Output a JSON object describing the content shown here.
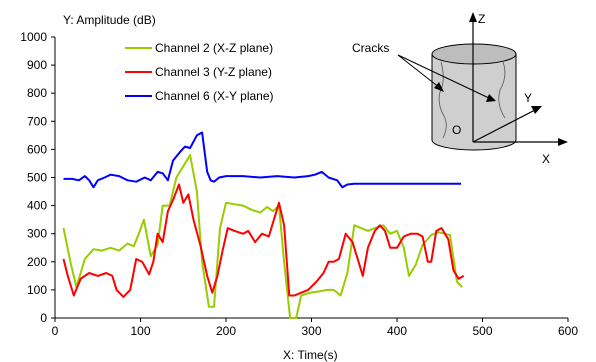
{
  "chart_data": {
    "type": "line",
    "title": "",
    "xlabel": "X: Time(s)",
    "ylabel": "Y: Amplitude (dB)",
    "xlim": [
      0,
      600
    ],
    "ylim": [
      0,
      1000
    ],
    "xticks": [
      0,
      100,
      200,
      300,
      400,
      500,
      600
    ],
    "yticks": [
      0,
      100,
      200,
      300,
      400,
      500,
      600,
      700,
      800,
      900,
      1000
    ],
    "grid": false,
    "legend_position": "top-left",
    "series": [
      {
        "name": "Channel 2 (X-Z plane)",
        "color": "#99cc00",
        "points": [
          [
            10,
            320
          ],
          [
            18,
            200
          ],
          [
            25,
            110
          ],
          [
            35,
            210
          ],
          [
            45,
            245
          ],
          [
            55,
            240
          ],
          [
            65,
            250
          ],
          [
            75,
            240
          ],
          [
            85,
            265
          ],
          [
            92,
            255
          ],
          [
            98,
            300
          ],
          [
            104,
            350
          ],
          [
            112,
            220
          ],
          [
            120,
            260
          ],
          [
            126,
            400
          ],
          [
            134,
            400
          ],
          [
            142,
            500
          ],
          [
            150,
            540
          ],
          [
            158,
            580
          ],
          [
            166,
            450
          ],
          [
            172,
            200
          ],
          [
            180,
            40
          ],
          [
            186,
            40
          ],
          [
            193,
            320
          ],
          [
            200,
            410
          ],
          [
            210,
            405
          ],
          [
            220,
            400
          ],
          [
            230,
            385
          ],
          [
            240,
            375
          ],
          [
            248,
            395
          ],
          [
            255,
            380
          ],
          [
            262,
            400
          ],
          [
            268,
            200
          ],
          [
            275,
            0
          ],
          [
            282,
            0
          ],
          [
            288,
            80
          ],
          [
            298,
            90
          ],
          [
            310,
            95
          ],
          [
            318,
            100
          ],
          [
            326,
            100
          ],
          [
            334,
            80
          ],
          [
            342,
            160
          ],
          [
            350,
            330
          ],
          [
            358,
            320
          ],
          [
            366,
            310
          ],
          [
            374,
            320
          ],
          [
            384,
            330
          ],
          [
            392,
            300
          ],
          [
            400,
            310
          ],
          [
            408,
            250
          ],
          [
            414,
            150
          ],
          [
            422,
            190
          ],
          [
            430,
            260
          ],
          [
            440,
            295
          ],
          [
            448,
            305
          ],
          [
            456,
            300
          ],
          [
            462,
            295
          ],
          [
            470,
            130
          ],
          [
            476,
            110
          ]
        ]
      },
      {
        "name": "Channel 3 (Y-Z plane)",
        "color": "#ff0000",
        "points": [
          [
            10,
            210
          ],
          [
            15,
            150
          ],
          [
            22,
            80
          ],
          [
            30,
            140
          ],
          [
            40,
            160
          ],
          [
            50,
            150
          ],
          [
            60,
            160
          ],
          [
            67,
            150
          ],
          [
            72,
            100
          ],
          [
            80,
            75
          ],
          [
            88,
            100
          ],
          [
            95,
            210
          ],
          [
            102,
            200
          ],
          [
            110,
            155
          ],
          [
            115,
            200
          ],
          [
            120,
            300
          ],
          [
            126,
            270
          ],
          [
            132,
            380
          ],
          [
            138,
            420
          ],
          [
            145,
            475
          ],
          [
            150,
            410
          ],
          [
            156,
            440
          ],
          [
            162,
            350
          ],
          [
            170,
            260
          ],
          [
            178,
            150
          ],
          [
            184,
            90
          ],
          [
            190,
            150
          ],
          [
            196,
            240
          ],
          [
            202,
            320
          ],
          [
            210,
            310
          ],
          [
            220,
            300
          ],
          [
            226,
            310
          ],
          [
            234,
            270
          ],
          [
            242,
            300
          ],
          [
            250,
            290
          ],
          [
            256,
            350
          ],
          [
            262,
            410
          ],
          [
            268,
            330
          ],
          [
            274,
            80
          ],
          [
            280,
            80
          ],
          [
            288,
            90
          ],
          [
            296,
            100
          ],
          [
            306,
            130
          ],
          [
            314,
            160
          ],
          [
            320,
            200
          ],
          [
            326,
            200
          ],
          [
            332,
            210
          ],
          [
            340,
            300
          ],
          [
            348,
            270
          ],
          [
            354,
            210
          ],
          [
            360,
            150
          ],
          [
            366,
            250
          ],
          [
            374,
            310
          ],
          [
            380,
            330
          ],
          [
            386,
            310
          ],
          [
            392,
            250
          ],
          [
            400,
            250
          ],
          [
            408,
            290
          ],
          [
            416,
            300
          ],
          [
            424,
            300
          ],
          [
            430,
            290
          ],
          [
            436,
            200
          ],
          [
            440,
            200
          ],
          [
            446,
            310
          ],
          [
            452,
            320
          ],
          [
            460,
            280
          ],
          [
            466,
            170
          ],
          [
            472,
            140
          ],
          [
            478,
            150
          ]
        ]
      },
      {
        "name": "Channel 6 (X-Y plane)",
        "color": "#0000ff",
        "points": [
          [
            10,
            495
          ],
          [
            20,
            495
          ],
          [
            28,
            490
          ],
          [
            35,
            505
          ],
          [
            40,
            490
          ],
          [
            45,
            465
          ],
          [
            50,
            490
          ],
          [
            58,
            500
          ],
          [
            65,
            510
          ],
          [
            75,
            505
          ],
          [
            85,
            490
          ],
          [
            95,
            485
          ],
          [
            105,
            500
          ],
          [
            112,
            490
          ],
          [
            120,
            520
          ],
          [
            126,
            515
          ],
          [
            132,
            490
          ],
          [
            138,
            560
          ],
          [
            146,
            590
          ],
          [
            152,
            610
          ],
          [
            158,
            605
          ],
          [
            166,
            650
          ],
          [
            172,
            660
          ],
          [
            178,
            520
          ],
          [
            182,
            490
          ],
          [
            186,
            485
          ],
          [
            192,
            500
          ],
          [
            200,
            505
          ],
          [
            220,
            505
          ],
          [
            240,
            500
          ],
          [
            260,
            505
          ],
          [
            280,
            500
          ],
          [
            296,
            505
          ],
          [
            304,
            510
          ],
          [
            312,
            520
          ],
          [
            320,
            500
          ],
          [
            330,
            490
          ],
          [
            336,
            465
          ],
          [
            342,
            475
          ],
          [
            350,
            478
          ],
          [
            360,
            478
          ],
          [
            380,
            478
          ],
          [
            400,
            478
          ],
          [
            420,
            478
          ],
          [
            440,
            478
          ],
          [
            460,
            478
          ],
          [
            475,
            478
          ]
        ]
      }
    ]
  },
  "inset": {
    "cracks_label": "Cracks",
    "z_label": "Z",
    "y_label": "Y",
    "x_label": "X",
    "o_label": "O"
  }
}
